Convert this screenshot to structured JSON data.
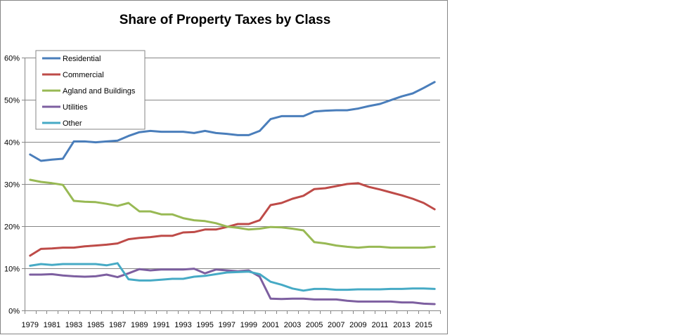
{
  "chart_data": {
    "type": "line",
    "title": "Share of Property Taxes by Class",
    "xlabel": "",
    "ylabel": "",
    "ylim": [
      0,
      60
    ],
    "y_ticks": [
      "0%",
      "10%",
      "20%",
      "30%",
      "40%",
      "50%",
      "60%"
    ],
    "y_tick_values": [
      0,
      10,
      20,
      30,
      40,
      50,
      60
    ],
    "x": [
      1979,
      1980,
      1981,
      1982,
      1983,
      1984,
      1985,
      1986,
      1987,
      1988,
      1989,
      1990,
      1991,
      1992,
      1993,
      1994,
      1995,
      1996,
      1997,
      1998,
      1999,
      2000,
      2001,
      2002,
      2003,
      2004,
      2005,
      2006,
      2007,
      2008,
      2009,
      2010,
      2011,
      2012,
      2013,
      2014,
      2015,
      2016
    ],
    "x_tick_labels": [
      "1979",
      "1981",
      "1983",
      "1985",
      "1987",
      "1989",
      "1991",
      "1993",
      "1995",
      "1997",
      "1999",
      "2001",
      "2003",
      "2005",
      "2007",
      "2009",
      "2011",
      "2013",
      "2015"
    ],
    "grid": true,
    "legend_position": "top-left",
    "series": [
      {
        "name": "Residential",
        "color": "#4a7ebb",
        "values": [
          37.0,
          35.5,
          35.8,
          36.0,
          40.1,
          40.1,
          39.9,
          40.1,
          40.3,
          41.4,
          42.3,
          42.6,
          42.4,
          42.4,
          42.4,
          42.1,
          42.6,
          42.1,
          41.9,
          41.6,
          41.6,
          42.6,
          45.4,
          46.1,
          46.1,
          46.1,
          47.2,
          47.4,
          47.5,
          47.5,
          47.9,
          48.5,
          49.0,
          49.9,
          50.8,
          51.5,
          52.8,
          54.2
        ]
      },
      {
        "name": "Commercial",
        "color": "#be4b48",
        "values": [
          13.0,
          14.6,
          14.7,
          14.9,
          14.9,
          15.2,
          15.4,
          15.6,
          15.9,
          16.9,
          17.2,
          17.4,
          17.7,
          17.7,
          18.5,
          18.6,
          19.2,
          19.2,
          19.8,
          20.5,
          20.5,
          21.4,
          25.0,
          25.5,
          26.5,
          27.2,
          28.8,
          29.0,
          29.5,
          30.0,
          30.2,
          29.3,
          28.7,
          28.0,
          27.3,
          26.5,
          25.5,
          24.0
        ]
      },
      {
        "name": "Agland and Buildings",
        "color": "#98b954",
        "values": [
          31.0,
          30.5,
          30.2,
          29.8,
          26.0,
          25.8,
          25.7,
          25.3,
          24.8,
          25.5,
          23.5,
          23.5,
          22.8,
          22.8,
          21.9,
          21.4,
          21.2,
          20.7,
          19.9,
          19.6,
          19.2,
          19.4,
          19.8,
          19.7,
          19.4,
          19.0,
          16.2,
          15.9,
          15.4,
          15.1,
          14.9,
          15.1,
          15.1,
          14.9,
          14.9,
          14.9,
          14.9,
          15.1
        ]
      },
      {
        "name": "Utilities",
        "color": "#7d5fa0",
        "values": [
          8.5,
          8.5,
          8.6,
          8.3,
          8.1,
          8.0,
          8.1,
          8.5,
          7.9,
          8.8,
          9.8,
          9.5,
          9.7,
          9.7,
          9.7,
          9.9,
          8.8,
          9.7,
          9.5,
          9.3,
          9.5,
          8.0,
          2.8,
          2.7,
          2.8,
          2.8,
          2.6,
          2.6,
          2.6,
          2.3,
          2.1,
          2.1,
          2.1,
          2.1,
          1.9,
          1.9,
          1.6,
          1.5
        ]
      },
      {
        "name": "Other",
        "color": "#46aac5",
        "values": [
          10.6,
          11.0,
          10.8,
          11.0,
          11.0,
          11.0,
          11.0,
          10.7,
          11.2,
          7.4,
          7.1,
          7.1,
          7.3,
          7.5,
          7.5,
          8.0,
          8.2,
          8.6,
          9.0,
          9.1,
          9.2,
          8.6,
          6.8,
          6.1,
          5.2,
          4.7,
          5.1,
          5.1,
          4.9,
          4.9,
          5.0,
          5.0,
          5.0,
          5.1,
          5.1,
          5.2,
          5.2,
          5.1
        ]
      }
    ]
  }
}
